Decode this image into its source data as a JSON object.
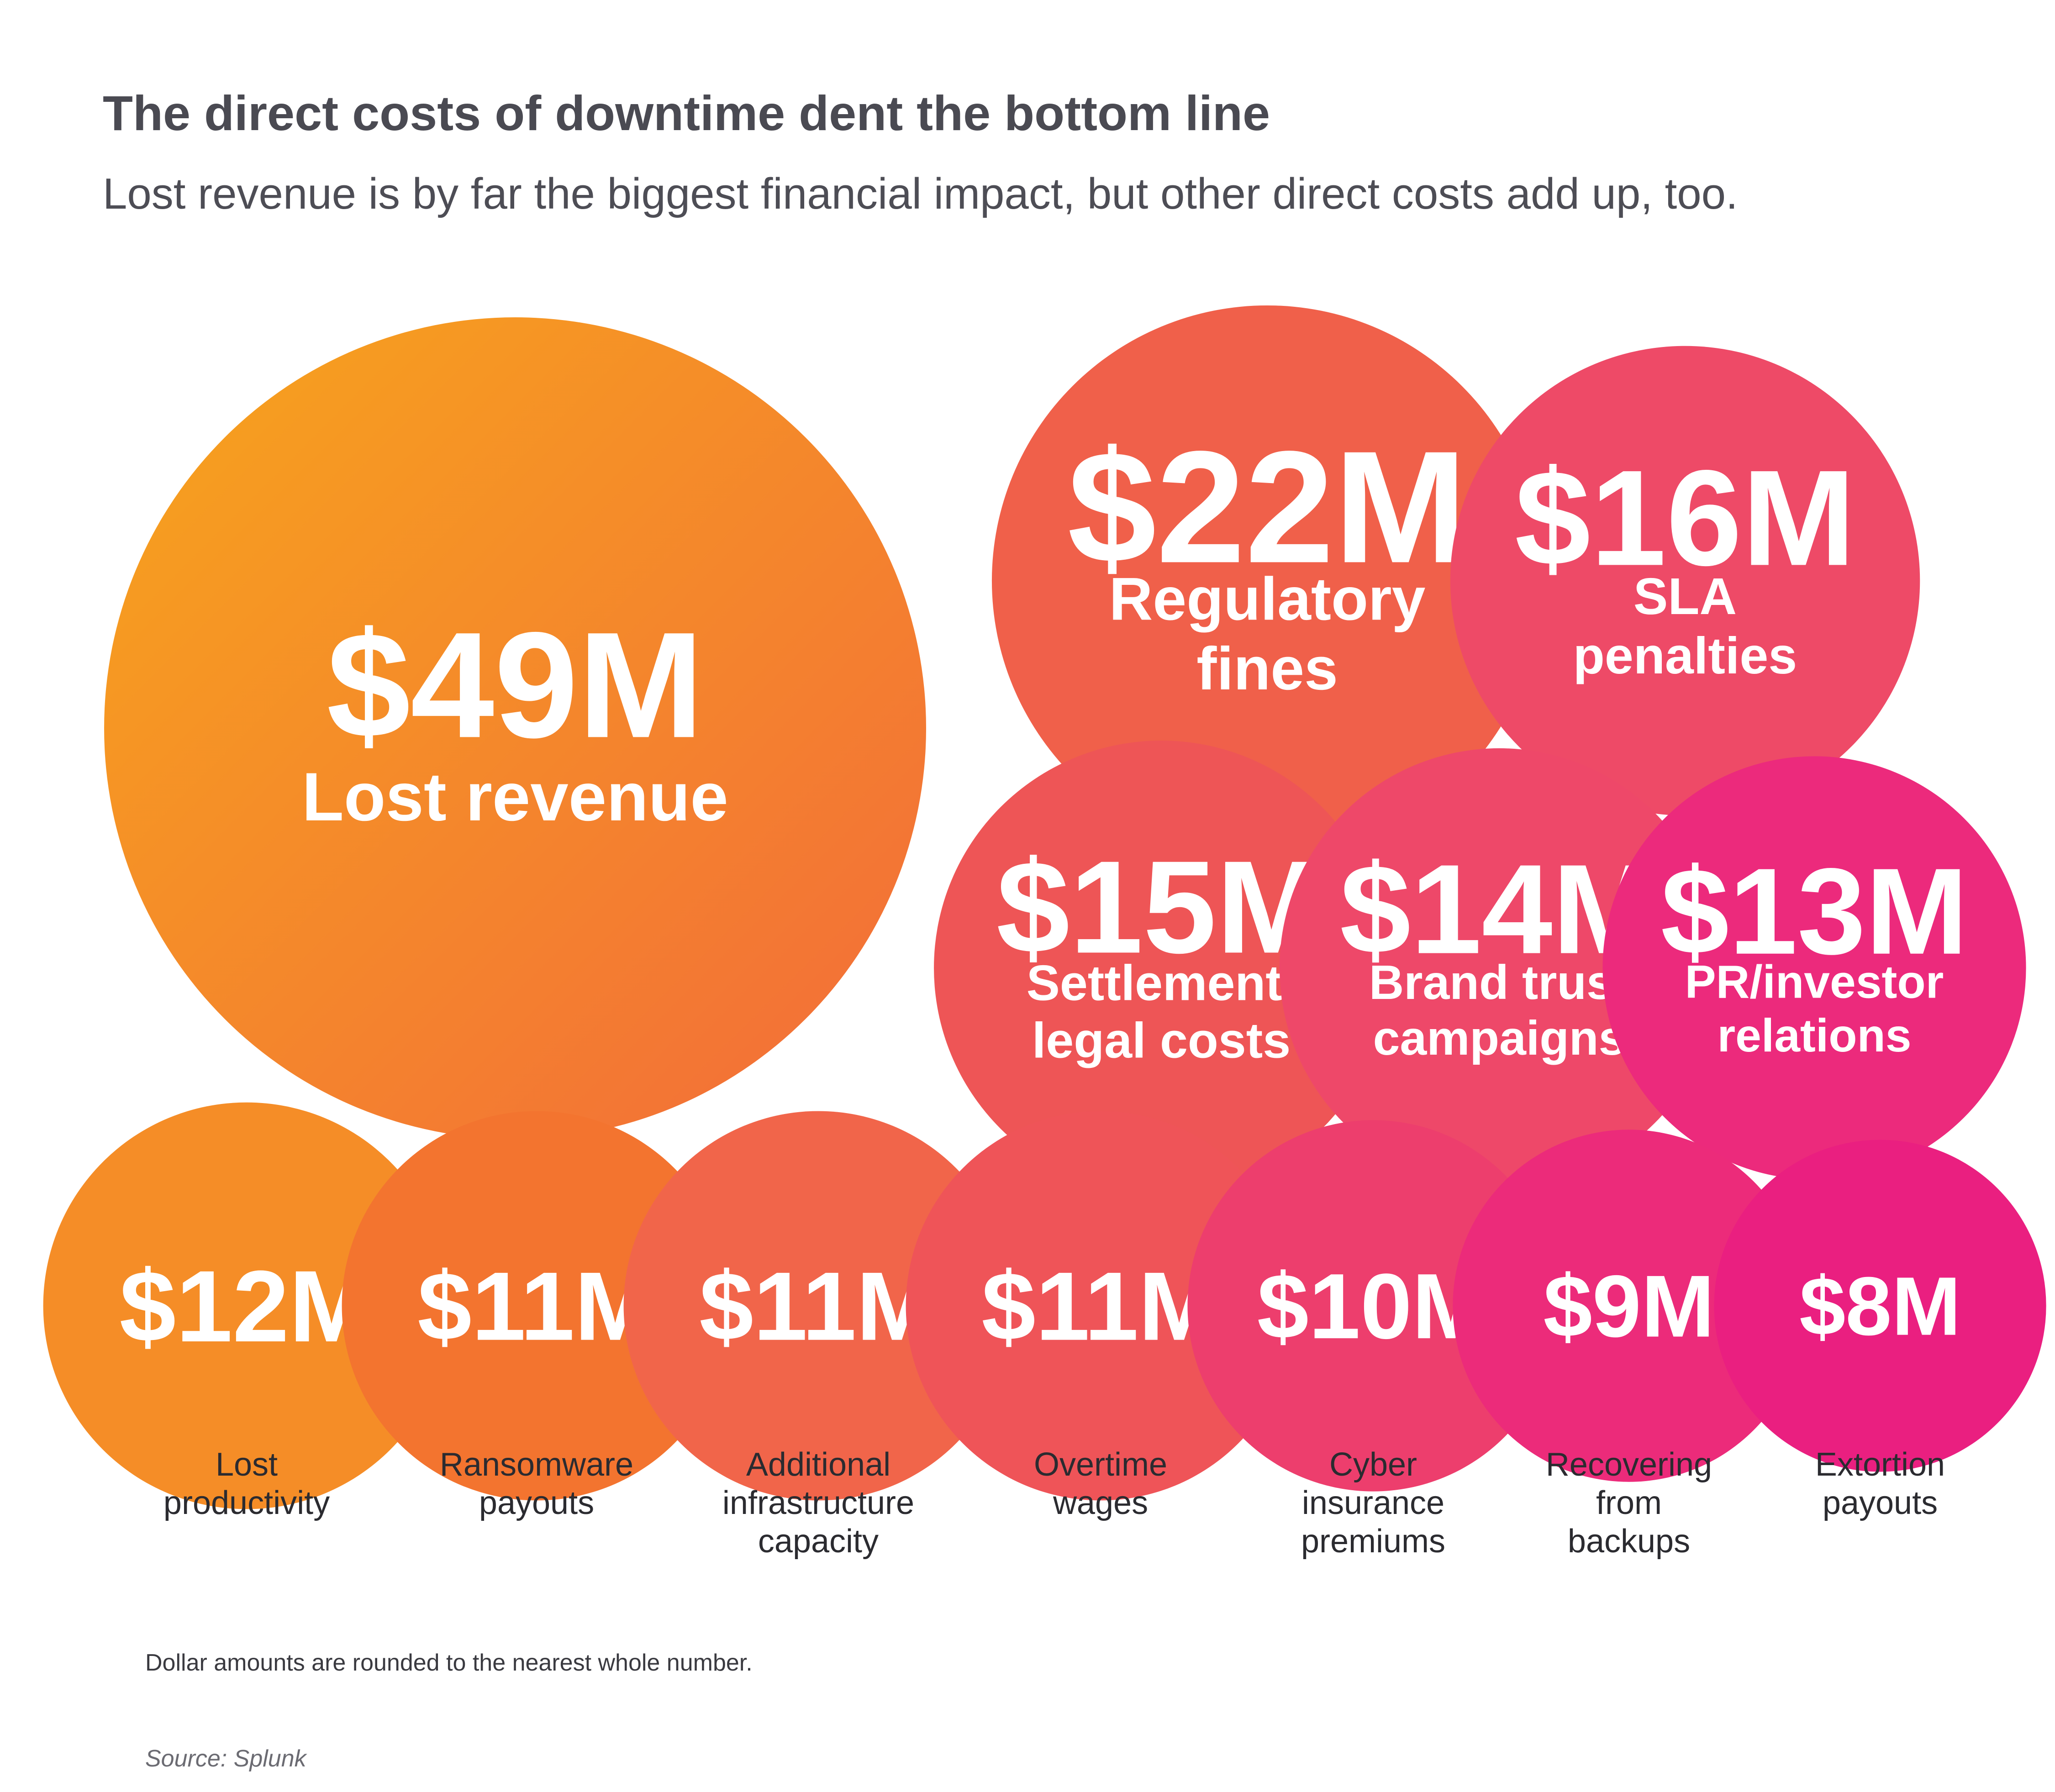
{
  "header": {
    "title": "The direct costs of downtime dent the bottom line",
    "subtitle": "Lost revenue is by far the biggest financial impact, but other direct costs add up, too."
  },
  "colors": {
    "start": "#f7a51c",
    "mid": "#f26b3a",
    "end": "#ec1f80"
  },
  "chart_data": {
    "type": "bubble",
    "unit": "$M",
    "bubbles": [
      {
        "label_lines": [
          "Lost revenue"
        ],
        "value": 49,
        "display": "$49M",
        "color": "#f48a2a"
      },
      {
        "label_lines": [
          "Regulatory",
          "fines"
        ],
        "value": 22,
        "display": "$22M",
        "color": "#f0604a"
      },
      {
        "label_lines": [
          "SLA",
          "penalties"
        ],
        "value": 16,
        "display": "$16M",
        "color": "#ee4a67"
      },
      {
        "label_lines": [
          "Settlement/",
          "legal costs"
        ],
        "value": 15,
        "display": "$15M",
        "color": "#ee5556"
      },
      {
        "label_lines": [
          "Brand trust",
          "campaigns"
        ],
        "value": 14,
        "display": "$14M",
        "color": "#ee4869"
      },
      {
        "label_lines": [
          "PR/investor",
          "relations"
        ],
        "value": 13,
        "display": "$13M",
        "color": "#ec2a7c"
      },
      {
        "label_lines": [
          "Lost",
          "productivity"
        ],
        "value": 12,
        "display": "$12M",
        "color": "#f58d27"
      },
      {
        "label_lines": [
          "Ransomware",
          "payouts"
        ],
        "value": 11,
        "display": "$11M",
        "color": "#f3742f"
      },
      {
        "label_lines": [
          "Additional",
          "infrastructure",
          "capacity"
        ],
        "value": 11,
        "display": "$11M",
        "color": "#f1654a"
      },
      {
        "label_lines": [
          "Overtime",
          "wages"
        ],
        "value": 11,
        "display": "$11M",
        "color": "#ef5458"
      },
      {
        "label_lines": [
          "Cyber",
          "insurance",
          "premiums"
        ],
        "value": 10,
        "display": "$10M",
        "color": "#ed3e6d"
      },
      {
        "label_lines": [
          "Recovering",
          "from",
          "backups"
        ],
        "value": 9,
        "display": "$9M",
        "color": "#ec2b7a"
      },
      {
        "label_lines": [
          "Extortion",
          "payouts"
        ],
        "value": 8,
        "display": "$8M",
        "color": "#ea1f80"
      }
    ]
  },
  "footer": {
    "note": "Dollar amounts are rounded to the nearest whole number.",
    "source": "Source: Splunk"
  }
}
